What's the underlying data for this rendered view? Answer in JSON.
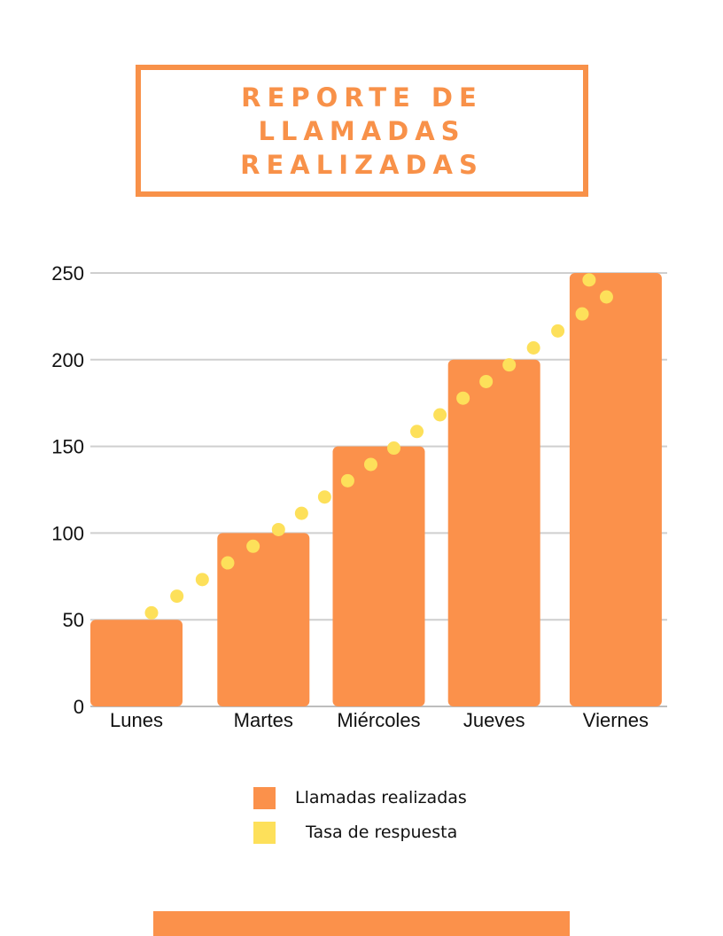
{
  "header": {
    "title_line1": "REPORTE DE",
    "title_line2": "LLAMADAS REALIZADAS"
  },
  "colors": {
    "accent": "#f89149",
    "bar": "#fb914b",
    "dots": "#fde05a",
    "grid": "#cfcfcf"
  },
  "chart_data": {
    "type": "bar",
    "categories": [
      "Lunes",
      "Martes",
      "Miércoles",
      "Jueves",
      "Viernes"
    ],
    "series": [
      {
        "name": "Llamadas realizadas",
        "type": "bar",
        "values": [
          50,
          100,
          150,
          200,
          250
        ]
      },
      {
        "name": "Tasa de respuesta",
        "type": "dotted-line",
        "values": [
          54,
          102,
          149,
          197,
          246
        ]
      }
    ],
    "ylim": [
      0,
      250
    ],
    "yticks": [
      0,
      50,
      100,
      150,
      200,
      250
    ],
    "grid": true,
    "legend": "bottom"
  },
  "legend": {
    "items": [
      {
        "label": "Llamadas realizadas"
      },
      {
        "label": "Tasa de respuesta"
      }
    ]
  }
}
